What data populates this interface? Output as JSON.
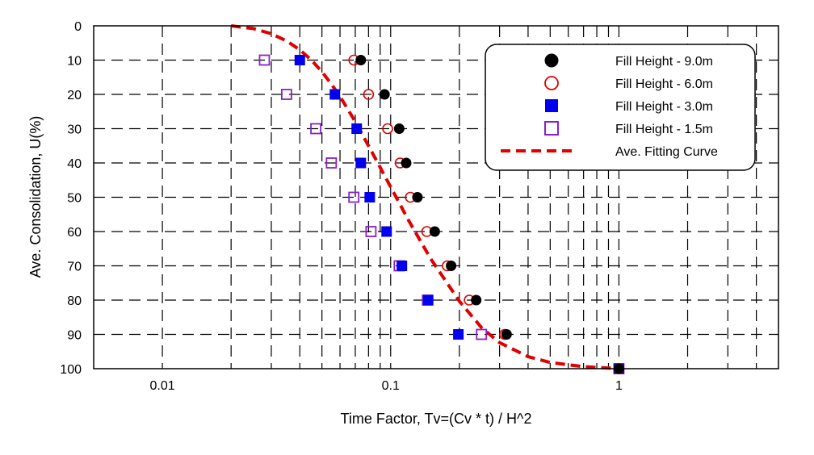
{
  "chart_data": {
    "type": "scatter",
    "title": "",
    "xlabel": "Time Factor, Tv=(Cv * t) / H^2",
    "ylabel": "Ave. Consolidation, U(%)",
    "xscale": "log",
    "xlim": [
      0.005,
      5
    ],
    "ylim": [
      0,
      100
    ],
    "y_inverted": true,
    "grid": true,
    "legend_position": "top-right",
    "x_tick_labels": [
      {
        "value": 0.01,
        "label": "0.01"
      },
      {
        "value": 0.1,
        "label": "0.1"
      },
      {
        "value": 1,
        "label": "1"
      }
    ],
    "y_tick_labels": [
      {
        "value": 0,
        "label": "0"
      },
      {
        "value": 10,
        "label": "10"
      },
      {
        "value": 20,
        "label": "20"
      },
      {
        "value": 30,
        "label": "30"
      },
      {
        "value": 40,
        "label": "40"
      },
      {
        "value": 50,
        "label": "50"
      },
      {
        "value": 60,
        "label": "60"
      },
      {
        "value": 70,
        "label": "70"
      },
      {
        "value": 80,
        "label": "80"
      },
      {
        "value": 90,
        "label": "90"
      },
      {
        "value": 100,
        "label": "100"
      }
    ],
    "series": [
      {
        "name": "Fill Height - 9.0m",
        "marker": "filled-circle",
        "color": "#000000",
        "points": [
          [
            0.074,
            10
          ],
          [
            0.094,
            20
          ],
          [
            0.109,
            30
          ],
          [
            0.117,
            40
          ],
          [
            0.131,
            50
          ],
          [
            0.156,
            60
          ],
          [
            0.184,
            70
          ],
          [
            0.237,
            80
          ],
          [
            0.322,
            90
          ],
          [
            1.0,
            100
          ]
        ]
      },
      {
        "name": "Fill Height - 6.0m",
        "marker": "open-circle",
        "color": "#e00000",
        "points": [
          [
            0.069,
            10
          ],
          [
            0.08,
            20
          ],
          [
            0.097,
            30
          ],
          [
            0.11,
            40
          ],
          [
            0.122,
            50
          ],
          [
            0.144,
            60
          ],
          [
            0.177,
            70
          ],
          [
            0.221,
            80
          ],
          [
            0.316,
            90
          ],
          [
            1.0,
            100
          ]
        ]
      },
      {
        "name": "Fill Height - 3.0m",
        "marker": "filled-square",
        "color": "#0000ee",
        "points": [
          [
            0.04,
            10
          ],
          [
            0.057,
            20
          ],
          [
            0.071,
            30
          ],
          [
            0.074,
            40
          ],
          [
            0.081,
            50
          ],
          [
            0.096,
            60
          ],
          [
            0.112,
            70
          ],
          [
            0.146,
            80
          ],
          [
            0.198,
            90
          ],
          [
            1.0,
            100
          ]
        ]
      },
      {
        "name": "Fill Height - 1.5m",
        "marker": "open-square",
        "color": "#8a1fc8",
        "points": [
          [
            0.028,
            10
          ],
          [
            0.035,
            20
          ],
          [
            0.047,
            30
          ],
          [
            0.055,
            40
          ],
          [
            0.069,
            50
          ],
          [
            0.082,
            60
          ],
          [
            0.109,
            70
          ],
          [
            0.145,
            80
          ],
          [
            0.25,
            90
          ],
          [
            1.0,
            100
          ]
        ]
      },
      {
        "name": "Ave. Fitting Curve",
        "marker": "dashed-line",
        "color": "#e00000",
        "points": [
          [
            0.02,
            0
          ],
          [
            0.025,
            0.8
          ],
          [
            0.03,
            2.3
          ],
          [
            0.035,
            4.4
          ],
          [
            0.04,
            7.0
          ],
          [
            0.045,
            10.0
          ],
          [
            0.05,
            13.4
          ],
          [
            0.055,
            17.0
          ],
          [
            0.06,
            20.6
          ],
          [
            0.065,
            24.4
          ],
          [
            0.07,
            28.0
          ],
          [
            0.08,
            35.0
          ],
          [
            0.09,
            41.3
          ],
          [
            0.1,
            47.0
          ],
          [
            0.12,
            56.8
          ],
          [
            0.15,
            68.0
          ],
          [
            0.2,
            80.3
          ],
          [
            0.25,
            88.0
          ],
          [
            0.3,
            92.4
          ],
          [
            0.4,
            96.5
          ],
          [
            0.5,
            98.2
          ],
          [
            0.7,
            99.4
          ],
          [
            1.0,
            100
          ]
        ]
      }
    ]
  }
}
